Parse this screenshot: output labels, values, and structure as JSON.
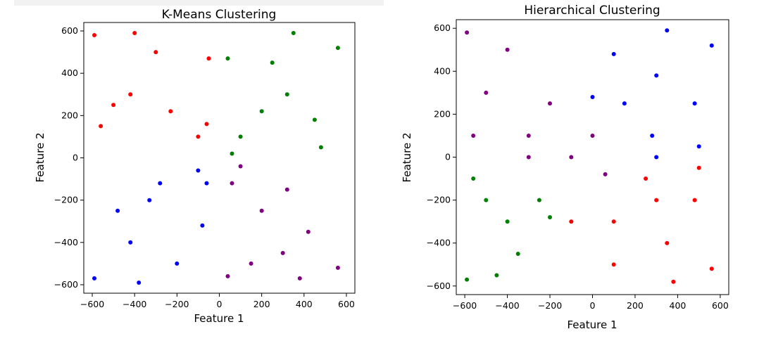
{
  "chart_data": [
    {
      "type": "scatter",
      "title": "K-Means Clustering",
      "xlabel": "Feature 1",
      "ylabel": "Feature 2",
      "xlim": [
        -640,
        640
      ],
      "ylim": [
        -640,
        640
      ],
      "xticks": [
        -600,
        -400,
        -200,
        0,
        200,
        400,
        600
      ],
      "yticks": [
        -600,
        -400,
        -200,
        0,
        200,
        400,
        600
      ],
      "xtick_labels": [
        "−600",
        "−400",
        "−200",
        "0",
        "200",
        "400",
        "600"
      ],
      "ytick_labels": [
        "−600",
        "−400",
        "−200",
        "0",
        "200",
        "400",
        "600"
      ],
      "grid": false,
      "data_shape": "three concentric rings of points (radius ~100, ~300, ~500) plus sparse uniform noise, split into 4 clusters by quadrant",
      "series": [
        {
          "color": "#ff0000",
          "points": [
            [
              -100,
              100
            ],
            [
              -60,
              160
            ],
            [
              -230,
              220
            ],
            [
              -420,
              300
            ],
            [
              -500,
              250
            ],
            [
              -560,
              150
            ],
            [
              -590,
              580
            ],
            [
              -400,
              590
            ],
            [
              -300,
              500
            ],
            [
              -50,
              470
            ]
          ]
        },
        {
          "color": "#008000",
          "points": [
            [
              100,
              100
            ],
            [
              60,
              20
            ],
            [
              200,
              220
            ],
            [
              320,
              300
            ],
            [
              450,
              180
            ],
            [
              480,
              50
            ],
            [
              560,
              520
            ],
            [
              350,
              590
            ],
            [
              250,
              450
            ],
            [
              40,
              470
            ]
          ]
        },
        {
          "color": "#0000ff",
          "points": [
            [
              -100,
              -60
            ],
            [
              -60,
              -120
            ],
            [
              -280,
              -120
            ],
            [
              -330,
              -200
            ],
            [
              -480,
              -250
            ],
            [
              -420,
              -400
            ],
            [
              -590,
              -570
            ],
            [
              -380,
              -590
            ],
            [
              -200,
              -500
            ],
            [
              -80,
              -320
            ]
          ]
        },
        {
          "color": "#800080",
          "points": [
            [
              60,
              -120
            ],
            [
              100,
              -40
            ],
            [
              200,
              -250
            ],
            [
              320,
              -150
            ],
            [
              420,
              -350
            ],
            [
              300,
              -450
            ],
            [
              560,
              -520
            ],
            [
              380,
              -570
            ],
            [
              150,
              -500
            ],
            [
              40,
              -560
            ]
          ]
        }
      ]
    },
    {
      "type": "scatter",
      "title": "Hierarchical Clustering",
      "xlabel": "Feature 1",
      "ylabel": "Feature 2",
      "xlim": [
        -640,
        640
      ],
      "ylim": [
        -640,
        640
      ],
      "xticks": [
        -600,
        -400,
        -200,
        0,
        200,
        400,
        600
      ],
      "yticks": [
        -600,
        -400,
        -200,
        0,
        200,
        400,
        600
      ],
      "xtick_labels": [
        "−600",
        "−400",
        "−200",
        "0",
        "200",
        "400",
        "600"
      ],
      "ytick_labels": [
        "−600",
        "−400",
        "−200",
        "0",
        "200",
        "400",
        "600"
      ],
      "grid": false,
      "data_shape": "three concentric rings: inner ring purple; middle and outer rings split into blue (upper-right), purple (upper-left), green (lower-left), red (lower-right)",
      "series": [
        {
          "color": "#800080",
          "points": [
            [
              0,
              100
            ],
            [
              -100,
              0
            ],
            [
              60,
              -80
            ],
            [
              -300,
              100
            ],
            [
              -200,
              250
            ],
            [
              -500,
              300
            ],
            [
              -560,
              100
            ],
            [
              -400,
              500
            ],
            [
              -590,
              580
            ],
            [
              -300,
              0
            ]
          ]
        },
        {
          "color": "#0000ff",
          "points": [
            [
              0,
              280
            ],
            [
              150,
              250
            ],
            [
              280,
              100
            ],
            [
              300,
              0
            ],
            [
              100,
              480
            ],
            [
              300,
              380
            ],
            [
              480,
              250
            ],
            [
              500,
              50
            ],
            [
              560,
              520
            ],
            [
              350,
              590
            ]
          ]
        },
        {
          "color": "#008000",
          "points": [
            [
              -250,
              -200
            ],
            [
              -200,
              -280
            ],
            [
              -400,
              -300
            ],
            [
              -500,
              -200
            ],
            [
              -350,
              -450
            ],
            [
              -560,
              -100
            ],
            [
              -590,
              -570
            ],
            [
              -450,
              -550
            ]
          ]
        },
        {
          "color": "#ff0000",
          "points": [
            [
              -100,
              -300
            ],
            [
              100,
              -300
            ],
            [
              250,
              -100
            ],
            [
              300,
              -200
            ],
            [
              100,
              -500
            ],
            [
              350,
              -400
            ],
            [
              480,
              -200
            ],
            [
              500,
              -50
            ],
            [
              560,
              -520
            ],
            [
              380,
              -580
            ]
          ]
        }
      ]
    }
  ]
}
